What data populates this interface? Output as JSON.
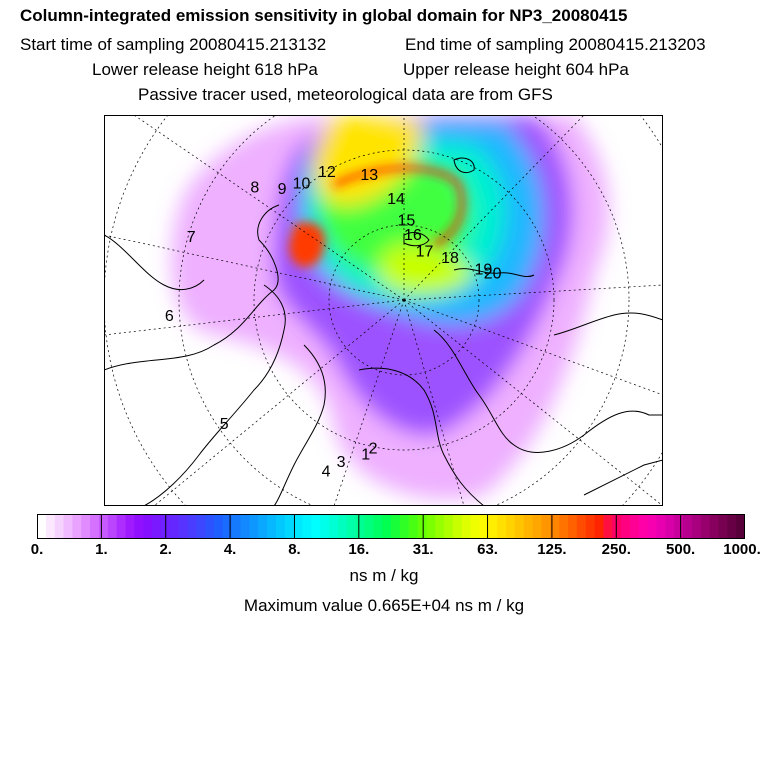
{
  "header": {
    "title": "Column-integrated emission sensitivity in global domain for NP3_20080415",
    "start": "Start time of sampling 20080415.213132",
    "end": "End time of sampling 20080415.213203",
    "lower": "Lower release height  618 hPa",
    "upper": "Upper release height  604 hPa",
    "note": "Passive tracer used, meteorological data are from GFS"
  },
  "colorbar": {
    "ticks": [
      "0.",
      "1.",
      "2.",
      "4.",
      "8.",
      "16.",
      "31.",
      "63.",
      "125.",
      "250.",
      "500.",
      "1000."
    ],
    "colors": [
      "#ffffff",
      "#fbe8ff",
      "#f6d2ff",
      "#f0bbff",
      "#e9a3ff",
      "#e08bff",
      "#d472ff",
      "#c85bff",
      "#bb44ff",
      "#ad2dff",
      "#9f1aff",
      "#9010ff",
      "#8410ff",
      "#7a18ff",
      "#6f20ff",
      "#6428ff",
      "#5832ff",
      "#4a3dff",
      "#3c47ff",
      "#2d52ff",
      "#1f5eff",
      "#1a6cff",
      "#167aff",
      "#1289ff",
      "#0e98ff",
      "#0aa8ff",
      "#06b8ff",
      "#03c8ff",
      "#00d8ff",
      "#00e8ff",
      "#00f4ff",
      "#00ffff",
      "#00ffea",
      "#00ffd4",
      "#00ffbe",
      "#00ffa8",
      "#00ff92",
      "#00ff7c",
      "#00ff66",
      "#00ff50",
      "#18ff3a",
      "#30ff26",
      "#48ff14",
      "#62ff06",
      "#7cff00",
      "#96ff00",
      "#b0ff00",
      "#c8ff00",
      "#deff00",
      "#f0ff00",
      "#fffa00",
      "#ffee00",
      "#ffe000",
      "#ffd200",
      "#ffc400",
      "#ffb500",
      "#ffa600",
      "#ff9600",
      "#ff8500",
      "#ff7300",
      "#ff6000",
      "#ff4c00",
      "#ff3800",
      "#ff2400",
      "#ff1040",
      "#ff0066",
      "#ff0080",
      "#ff0094",
      "#ff00a8",
      "#f600b0",
      "#e800b0",
      "#d800a8",
      "#c8009c",
      "#b8008e",
      "#a8007e",
      "#98006e",
      "#88005e",
      "#780050",
      "#680045",
      "#58003a"
    ]
  },
  "units": "ns m / kg",
  "maximum": "Maximum value  0.665E+04 ns m / kg",
  "track_points": [
    {
      "label": "1",
      "lon": -40,
      "lat": 68
    },
    {
      "label": "2",
      "lon": -38,
      "lat": 69
    },
    {
      "label": "3",
      "lon": -47,
      "lat": 66
    },
    {
      "label": "4",
      "lon": -50,
      "lat": 64
    },
    {
      "label": "5",
      "lon": -80,
      "lat": 60
    },
    {
      "label": "6",
      "lon": -110,
      "lat": 58
    },
    {
      "label": "7",
      "lon": -130,
      "lat": 60
    },
    {
      "label": "8",
      "lon": -150,
      "lat": 65
    },
    {
      "label": "9",
      "lon": -155,
      "lat": 68
    },
    {
      "label": "10",
      "lon": -160,
      "lat": 69
    },
    {
      "label": "12",
      "lon": -170,
      "lat": 70
    },
    {
      "label": "13",
      "lon": 175,
      "lat": 73
    },
    {
      "label": "14",
      "lon": 165,
      "lat": 77
    },
    {
      "label": "15",
      "lon": 160,
      "lat": 80
    },
    {
      "label": "16",
      "lon": 155,
      "lat": 82
    },
    {
      "label": "17",
      "lon": 140,
      "lat": 84
    },
    {
      "label": "18",
      "lon": 110,
      "lat": 83
    },
    {
      "label": "19",
      "lon": 85,
      "lat": 80
    },
    {
      "label": "20",
      "lon": 80,
      "lat": 79
    }
  ]
}
